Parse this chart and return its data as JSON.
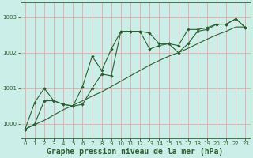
{
  "background_color": "#cceee8",
  "grid_color": "#e8a8a8",
  "line_color": "#2a6030",
  "xlabel": "Graphe pression niveau de la mer (hPa)",
  "xlabel_fontsize": 7,
  "ylim": [
    999.6,
    1003.4
  ],
  "xlim": [
    -0.5,
    23.5
  ],
  "yticks": [
    1000,
    1001,
    1002,
    1003
  ],
  "xticks": [
    0,
    1,
    2,
    3,
    4,
    5,
    6,
    7,
    8,
    9,
    10,
    11,
    12,
    13,
    14,
    15,
    16,
    17,
    18,
    19,
    20,
    21,
    22,
    23
  ],
  "line1_x": [
    0,
    1,
    2,
    3,
    4,
    5,
    6,
    7,
    8,
    9,
    10,
    11,
    12,
    13,
    14,
    15,
    16,
    17,
    18,
    19,
    20,
    21,
    22,
    23
  ],
  "line1_y": [
    999.85,
    1000.6,
    1001.0,
    1000.65,
    1000.55,
    1000.5,
    1001.05,
    1001.9,
    1001.5,
    1002.1,
    1002.6,
    1002.6,
    1002.6,
    1002.1,
    1002.2,
    1002.25,
    1002.0,
    1002.25,
    1002.6,
    1002.65,
    1002.8,
    1002.8,
    1002.95,
    1002.7
  ],
  "line2_x": [
    0,
    1,
    2,
    3,
    4,
    5,
    6,
    7,
    8,
    9,
    10,
    11,
    12,
    13,
    14,
    15,
    16,
    17,
    18,
    19,
    20,
    21,
    22,
    23
  ],
  "line2_y": [
    999.85,
    999.98,
    1000.1,
    1000.25,
    1000.4,
    1000.52,
    1000.65,
    1000.78,
    1000.9,
    1001.05,
    1001.2,
    1001.35,
    1001.5,
    1001.65,
    1001.78,
    1001.9,
    1002.0,
    1002.12,
    1002.25,
    1002.38,
    1002.5,
    1002.6,
    1002.72,
    1002.72
  ],
  "line3_x": [
    0,
    1,
    2,
    3,
    4,
    5,
    6,
    7,
    8,
    9,
    10,
    11,
    12,
    13,
    14,
    15,
    16,
    17,
    18,
    19,
    20,
    21,
    22,
    23
  ],
  "line3_y": [
    999.85,
    1000.0,
    1000.65,
    1000.65,
    1000.55,
    1000.5,
    1000.55,
    1001.0,
    1001.4,
    1001.35,
    1002.6,
    1002.6,
    1002.6,
    1002.55,
    1002.25,
    1002.25,
    1002.2,
    1002.65,
    1002.65,
    1002.7,
    1002.8,
    1002.8,
    1002.95,
    1002.7
  ]
}
